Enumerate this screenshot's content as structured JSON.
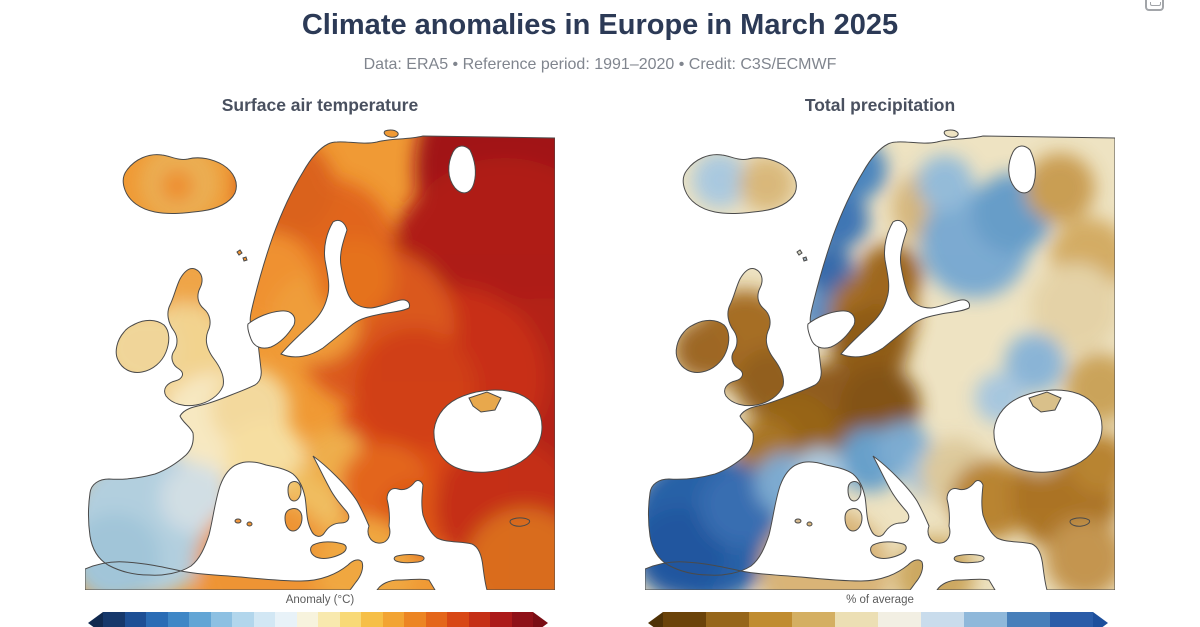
{
  "figure": {
    "title": "Climate anomalies in Europe in March 2025",
    "subtitle": "Data: ERA5 • Reference period: 1991–2020 • Credit: C3S/ECMWF"
  },
  "corner_icon": "embed-badge-icon",
  "panels": {
    "temperature": {
      "title": "Surface air temperature",
      "colorbar_label": "Anomaly (°C)",
      "colorbar": {
        "arrow_left": "#10294f",
        "arrow_right": "#7a0d14",
        "colors": [
          "#16386b",
          "#1d4f95",
          "#2a6cb5",
          "#3f87c6",
          "#62a5d5",
          "#8dc0e2",
          "#b2d6ec",
          "#d2e7f4",
          "#e8f2f8",
          "#f7f3dd",
          "#f8e9ae",
          "#f8d977",
          "#f6bf47",
          "#f2a433",
          "#ec8523",
          "#e4661a",
          "#d84715",
          "#c52f16",
          "#ac1a1a",
          "#8f1118"
        ]
      }
    },
    "precipitation": {
      "title": "Total precipitation",
      "colorbar_label": "% of average",
      "colorbar": {
        "arrow_left": "#4f3206",
        "arrow_right": "#1d4f9c",
        "colors": [
          "#6b4309",
          "#96661a",
          "#c08c30",
          "#d4af62",
          "#ecdfb4",
          "#f2efe3",
          "#c9dcec",
          "#8fb8da",
          "#477fba",
          "#2a5ca8"
        ]
      }
    }
  },
  "colors": {
    "title_text": "#2c3a56",
    "subtitle_text": "#80858e",
    "panel_title_text": "#49505f",
    "coastline": "#4a4a4a",
    "sea": "#ffffff"
  }
}
